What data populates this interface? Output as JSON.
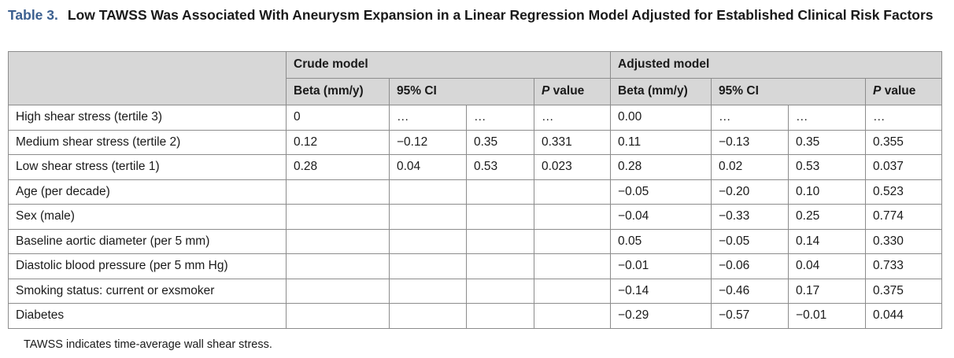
{
  "title": {
    "label": "Table 3.",
    "text": "Low TAWSS Was Associated With Aneurysm Expansion in a Linear Regression Model Adjusted for Established Clinical Risk Factors"
  },
  "header": {
    "group_crude": "Crude model",
    "group_adjusted": "Adjusted model",
    "beta": "Beta (mm/y)",
    "ci": "95% CI",
    "p_italic": "P",
    "p_rest": " value"
  },
  "rows": [
    {
      "label": "High shear stress (tertile 3)",
      "cells": [
        "0",
        "…",
        "…",
        "…",
        "0.00",
        "…",
        "…",
        "…"
      ]
    },
    {
      "label": "Medium shear stress (tertile 2)",
      "cells": [
        "0.12",
        "−0.12",
        "0.35",
        "0.331",
        "0.11",
        "−0.13",
        "0.35",
        "0.355"
      ]
    },
    {
      "label": "Low shear stress (tertile 1)",
      "cells": [
        "0.28",
        "0.04",
        "0.53",
        "0.023",
        "0.28",
        "0.02",
        "0.53",
        "0.037"
      ]
    },
    {
      "label": "Age (per decade)",
      "cells": [
        "",
        "",
        "",
        "",
        "−0.05",
        "−0.20",
        "0.10",
        "0.523"
      ]
    },
    {
      "label": "Sex (male)",
      "cells": [
        "",
        "",
        "",
        "",
        "−0.04",
        "−0.33",
        "0.25",
        "0.774"
      ]
    },
    {
      "label": "Baseline aortic diameter (per 5 mm)",
      "cells": [
        "",
        "",
        "",
        "",
        "0.05",
        "−0.05",
        "0.14",
        "0.330"
      ]
    },
    {
      "label": "Diastolic blood pressure (per 5 mm Hg)",
      "cells": [
        "",
        "",
        "",
        "",
        "−0.01",
        "−0.06",
        "0.04",
        "0.733"
      ]
    },
    {
      "label": "Smoking status: current or exsmoker",
      "cells": [
        "",
        "",
        "",
        "",
        "−0.14",
        "−0.46",
        "0.17",
        "0.375"
      ]
    },
    {
      "label": "Diabetes",
      "cells": [
        "",
        "",
        "",
        "",
        "−0.29",
        "−0.57",
        "−0.01",
        "0.044"
      ]
    }
  ],
  "footnote": "TAWSS indicates time-average wall shear stress."
}
